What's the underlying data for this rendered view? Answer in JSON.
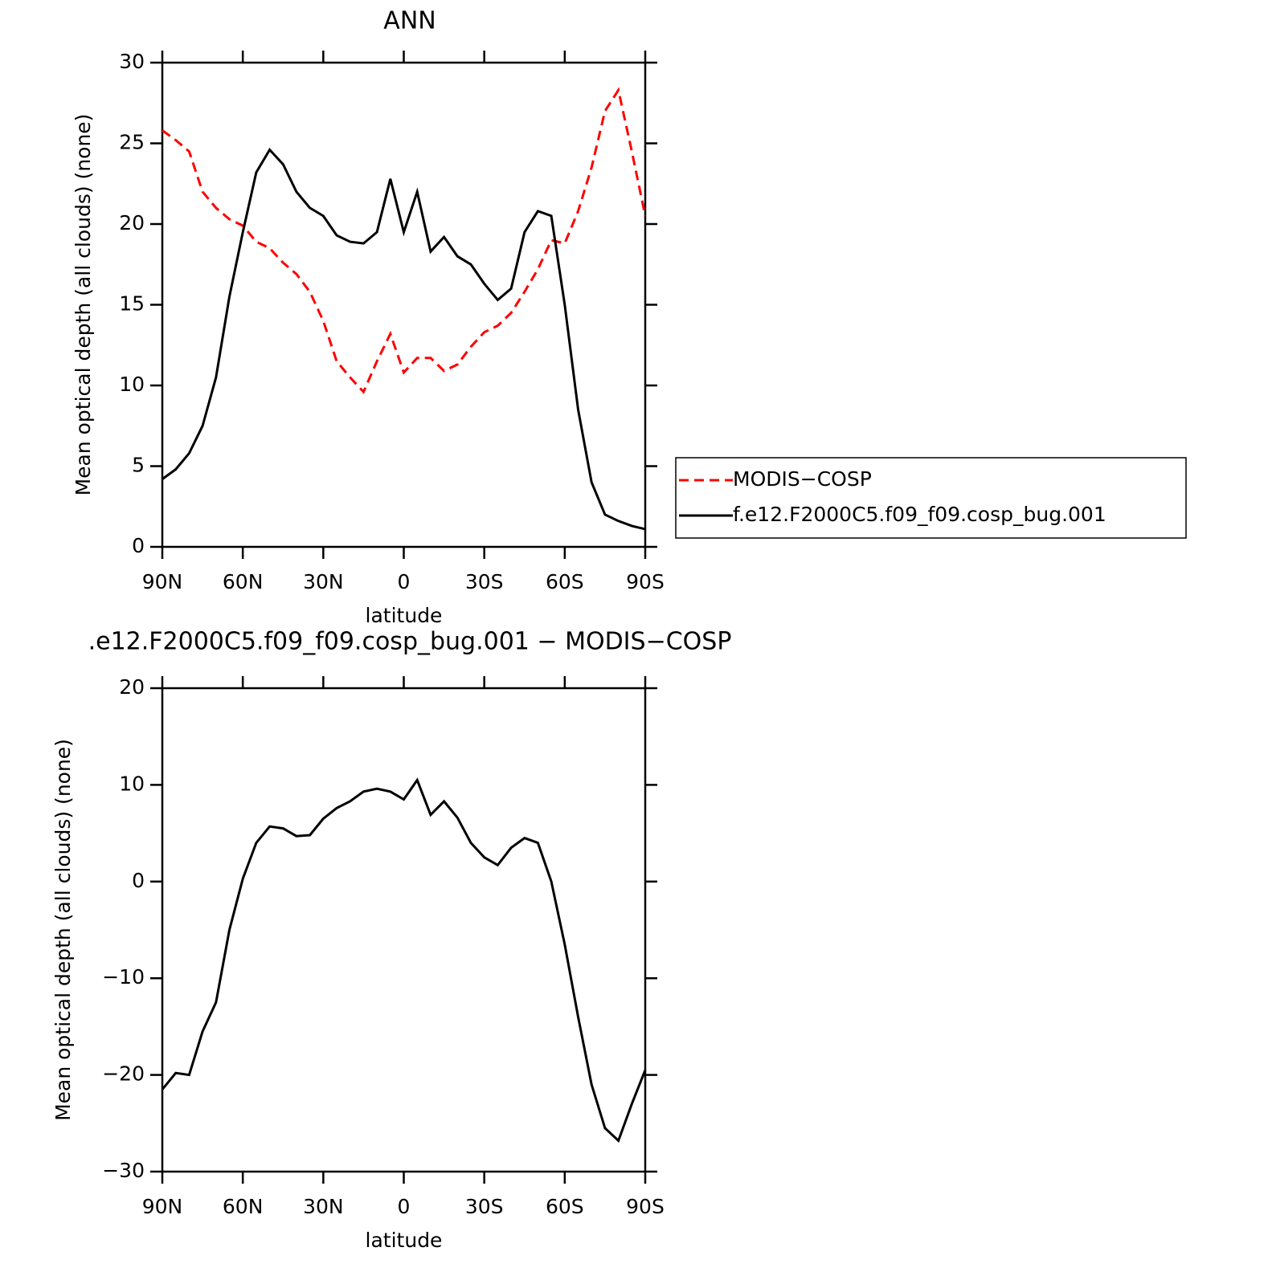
{
  "chart_data": [
    {
      "type": "line",
      "title": "ANN",
      "y_label": "Mean optical depth (all clouds) (none)",
      "x_label": "latitude",
      "x": [
        90,
        85,
        80,
        75,
        70,
        65,
        60,
        55,
        50,
        45,
        40,
        35,
        30,
        25,
        20,
        15,
        10,
        5,
        0,
        -5,
        -10,
        -15,
        -20,
        -25,
        -30,
        -35,
        -40,
        -45,
        -50,
        -55,
        -60,
        -65,
        -70,
        -75,
        -80,
        -85,
        -90
      ],
      "series": [
        {
          "name": "MODIS−COSP",
          "color": "#ff0000",
          "linestyle": "dashed",
          "values": [
            25.8,
            25.2,
            24.5,
            22.0,
            21.0,
            20.3,
            19.9,
            18.9,
            18.5,
            17.6,
            16.9,
            15.8,
            14.0,
            11.5,
            10.5,
            9.6,
            11.5,
            13.2,
            10.8,
            11.7,
            11.7,
            10.9,
            11.3,
            12.4,
            13.3,
            13.7,
            14.5,
            15.8,
            17.2,
            19.0,
            18.8,
            20.8,
            23.5,
            27.0,
            28.3,
            24.5,
            20.5
          ]
        },
        {
          "name": "f.e12.F2000C5.f09_f09.cosp_bug.001",
          "color": "#000000",
          "linestyle": "solid",
          "values": [
            4.2,
            4.8,
            5.8,
            7.5,
            10.5,
            15.5,
            19.5,
            23.2,
            24.6,
            23.7,
            22.0,
            21.0,
            20.5,
            19.3,
            18.9,
            18.8,
            19.5,
            22.8,
            19.5,
            22.0,
            18.3,
            19.2,
            18.0,
            17.5,
            16.3,
            15.3,
            16.0,
            19.5,
            20.8,
            20.5,
            15.0,
            8.5,
            4.0,
            2.0,
            1.6,
            1.3,
            1.1
          ]
        }
      ],
      "xlim": [
        90,
        -90
      ],
      "xticks": [
        {
          "value": 90,
          "label": "90N"
        },
        {
          "value": 60,
          "label": "60N"
        },
        {
          "value": 30,
          "label": "30N"
        },
        0,
        {
          "value": -30,
          "label": "30S"
        },
        {
          "value": -60,
          "label": "60S"
        },
        {
          "value": -90,
          "label": "90S"
        }
      ],
      "ylim": [
        0,
        30
      ],
      "yticks": [
        0,
        5,
        10,
        15,
        20,
        25,
        30
      ],
      "legend": "right"
    },
    {
      "type": "line",
      "title": ".e12.F2000C5.f09_f09.cosp_bug.001 − MODIS−COSP",
      "y_label": "Mean optical depth (all clouds) (none)",
      "x_label": "latitude",
      "x": [
        90,
        85,
        80,
        75,
        70,
        65,
        60,
        55,
        50,
        45,
        40,
        35,
        30,
        25,
        20,
        15,
        10,
        5,
        0,
        -5,
        -10,
        -15,
        -20,
        -25,
        -30,
        -35,
        -40,
        -45,
        -50,
        -55,
        -60,
        -65,
        -70,
        -75,
        -80,
        -85,
        -90
      ],
      "color": "#000000",
      "values": [
        -21.5,
        -19.8,
        -20.0,
        -15.5,
        -12.5,
        -5.0,
        0.3,
        4.0,
        5.7,
        5.5,
        4.7,
        4.8,
        6.5,
        7.6,
        8.3,
        9.3,
        9.6,
        9.3,
        8.5,
        10.5,
        6.9,
        8.3,
        6.6,
        4.0,
        2.5,
        1.7,
        3.5,
        4.5,
        4.0,
        0,
        -6.5,
        -14,
        -21.0,
        -25.5,
        -26.8,
        -23,
        -19.5
      ],
      "xlim": [
        90,
        -90
      ],
      "xticks": [
        {
          "value": 90,
          "label": "90N"
        },
        {
          "value": 60,
          "label": "60N"
        },
        {
          "value": 30,
          "label": "30N"
        },
        0,
        {
          "value": -30,
          "label": "30S"
        },
        {
          "value": -60,
          "label": "60S"
        },
        {
          "value": -90,
          "label": "90S"
        }
      ],
      "ylim": [
        -30,
        20
      ],
      "yticks": [
        {
          "value": -30,
          "label": "−30"
        },
        {
          "value": -20,
          "label": "−20"
        },
        {
          "value": -10,
          "label": "−10"
        },
        0,
        10,
        20
      ]
    }
  ]
}
